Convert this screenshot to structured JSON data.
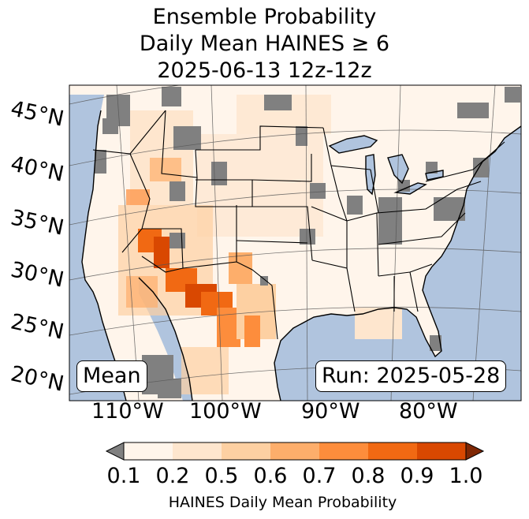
{
  "title": {
    "line1": "Ensemble Probability",
    "line2": "Daily Mean HAINES ≥ 6",
    "line3": "2025-06-13 12z-12z"
  },
  "map": {
    "ocean_color": "#b0c4de",
    "land_color": "#fff5eb",
    "missing_color": "#808080",
    "lat_labels": [
      "45°N",
      "40°N",
      "35°N",
      "30°N",
      "25°N",
      "20°N"
    ],
    "lon_labels": [
      "110°W",
      "100°W",
      "90°W",
      "80°W"
    ],
    "mean_box": "Mean",
    "run_box": "Run: 2025-05-28"
  },
  "colorbar": {
    "label": "HAINES Daily Mean Probability",
    "ticks": [
      "0.1",
      "0.2",
      "0.5",
      "0.6",
      "0.7",
      "0.8",
      "0.9",
      "1.0"
    ],
    "under_color": "#808080",
    "over_color": "#7f2704",
    "colors": [
      "#fff5eb",
      "#fee6ce",
      "#fdd0a2",
      "#fdae6b",
      "#fd8d3c",
      "#f16913",
      "#d94801"
    ]
  }
}
